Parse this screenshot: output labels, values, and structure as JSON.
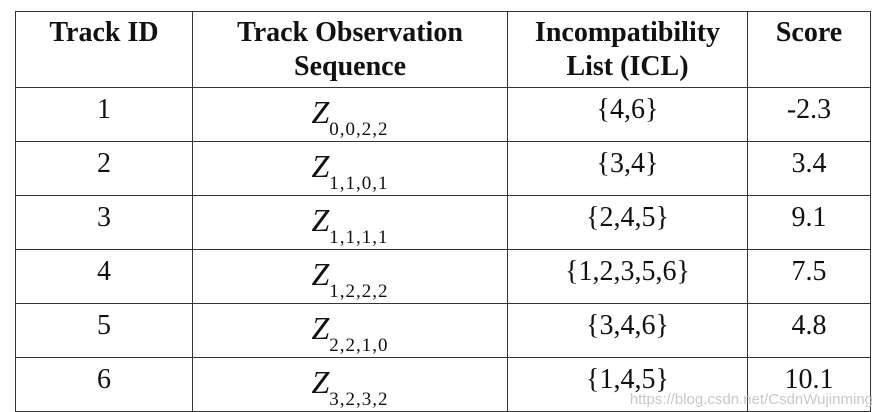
{
  "table": {
    "headers": [
      {
        "lines": [
          "Track ID"
        ]
      },
      {
        "lines": [
          "Track Observation",
          "Sequence"
        ]
      },
      {
        "lines": [
          "Incompatibility",
          "List (ICL)"
        ]
      },
      {
        "lines": [
          "Score"
        ]
      }
    ],
    "rows": [
      {
        "id": "1",
        "seq_letter": "Z",
        "seq_sub": "0,0,2,2",
        "icl": "{4,6}",
        "score": "-2.3"
      },
      {
        "id": "2",
        "seq_letter": "Z",
        "seq_sub": "1,1,0,1",
        "icl": "{3,4}",
        "score": "3.4"
      },
      {
        "id": "3",
        "seq_letter": "Z",
        "seq_sub": "1,1,1,1",
        "icl": "{2,4,5}",
        "score": "9.1"
      },
      {
        "id": "4",
        "seq_letter": "Z",
        "seq_sub": "1,2,2,2",
        "icl": "{1,2,3,5,6}",
        "score": "7.5"
      },
      {
        "id": "5",
        "seq_letter": "Z",
        "seq_sub": "2,2,1,0",
        "icl": "{3,4,6}",
        "score": "4.8"
      },
      {
        "id": "6",
        "seq_letter": "Z",
        "seq_sub": "3,2,3,2",
        "icl": "{1,4,5}",
        "score": "10.1"
      }
    ]
  },
  "watermark": "https://blog.csdn.net/CsdnWujinming"
}
